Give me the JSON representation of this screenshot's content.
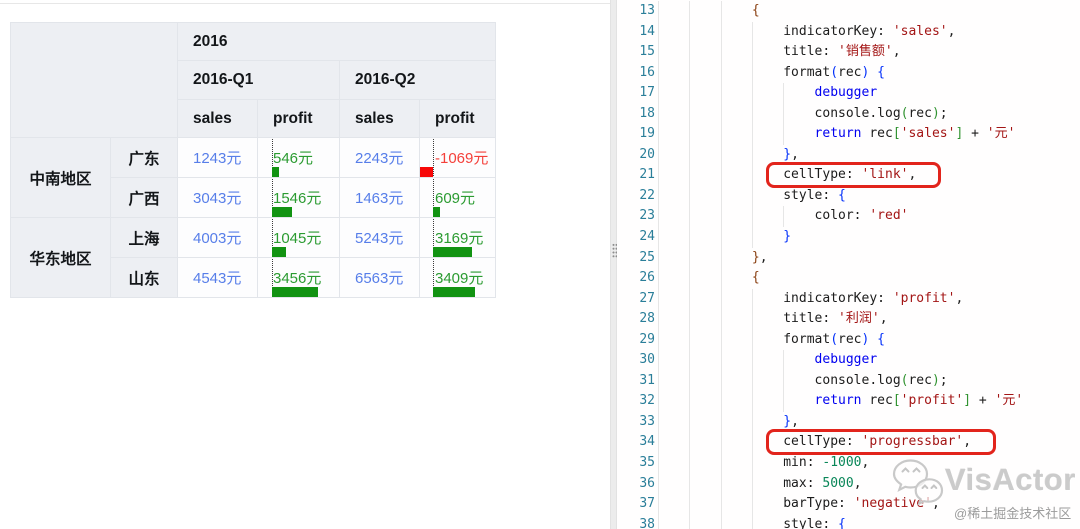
{
  "table": {
    "year_header": "2016",
    "quarters": [
      "2016-Q1",
      "2016-Q2"
    ],
    "metrics": [
      "sales",
      "profit",
      "sales",
      "profit"
    ],
    "progress": {
      "min": -1000,
      "max": 5000
    },
    "groups": [
      {
        "region": "中南地区",
        "rows": [
          {
            "city": "广东",
            "cells": [
              {
                "t": "1243元"
              },
              {
                "t": "546元",
                "v": 546
              },
              {
                "t": "2243元"
              },
              {
                "t": "-1069元",
                "v": -1069
              }
            ]
          },
          {
            "city": "广西",
            "cells": [
              {
                "t": "3043元"
              },
              {
                "t": "1546元",
                "v": 1546
              },
              {
                "t": "1463元"
              },
              {
                "t": "609元",
                "v": 609
              }
            ]
          }
        ]
      },
      {
        "region": "华东地区",
        "rows": [
          {
            "city": "上海",
            "cells": [
              {
                "t": "4003元"
              },
              {
                "t": "1045元",
                "v": 1045
              },
              {
                "t": "5243元"
              },
              {
                "t": "3169元",
                "v": 3169
              }
            ]
          },
          {
            "city": "山东",
            "cells": [
              {
                "t": "4543元"
              },
              {
                "t": "3456元",
                "v": 3456
              },
              {
                "t": "6563元"
              },
              {
                "t": "3409元",
                "v": 3409
              }
            ]
          }
        ]
      }
    ]
  },
  "editor": {
    "lines": [
      {
        "n": "13",
        "i": 3,
        "t": [
          [
            "b1",
            "{"
          ]
        ]
      },
      {
        "n": "14",
        "i": 4,
        "t": [
          [
            "d",
            "indicatorKey: "
          ],
          [
            "s",
            "'sales'"
          ],
          [
            "d",
            ","
          ]
        ]
      },
      {
        "n": "15",
        "i": 4,
        "t": [
          [
            "d",
            "title: "
          ],
          [
            "s",
            "'销售额'"
          ],
          [
            "d",
            ","
          ]
        ]
      },
      {
        "n": "16",
        "i": 4,
        "t": [
          [
            "d",
            "format"
          ],
          [
            "b2",
            "("
          ],
          [
            "d",
            "rec"
          ],
          [
            "b2",
            ")"
          ],
          [
            "d",
            " "
          ],
          [
            "b2",
            "{"
          ]
        ]
      },
      {
        "n": "17",
        "i": 5,
        "t": [
          [
            "k",
            "debugger"
          ]
        ]
      },
      {
        "n": "18",
        "i": 5,
        "t": [
          [
            "d",
            "console.log"
          ],
          [
            "b3",
            "("
          ],
          [
            "d",
            "rec"
          ],
          [
            "b3",
            ")"
          ],
          [
            "d",
            ";"
          ]
        ]
      },
      {
        "n": "19",
        "i": 5,
        "t": [
          [
            "k",
            "return"
          ],
          [
            "d",
            " rec"
          ],
          [
            "b3",
            "["
          ],
          [
            "s",
            "'sales'"
          ],
          [
            "b3",
            "]"
          ],
          [
            "d",
            " + "
          ],
          [
            "s",
            "'元'"
          ]
        ]
      },
      {
        "n": "20",
        "i": 4,
        "t": [
          [
            "b2",
            "}"
          ],
          [
            "d",
            ","
          ]
        ]
      },
      {
        "n": "21",
        "i": 4,
        "box": true,
        "t": [
          [
            "d",
            "cellType: "
          ],
          [
            "s",
            "'link'"
          ],
          [
            "d",
            ","
          ]
        ]
      },
      {
        "n": "22",
        "i": 4,
        "t": [
          [
            "d",
            "style: "
          ],
          [
            "b2",
            "{"
          ]
        ]
      },
      {
        "n": "23",
        "i": 5,
        "t": [
          [
            "d",
            "color: "
          ],
          [
            "s",
            "'red'"
          ]
        ]
      },
      {
        "n": "24",
        "i": 4,
        "t": [
          [
            "b2",
            "}"
          ]
        ]
      },
      {
        "n": "25",
        "i": 3,
        "t": [
          [
            "b1",
            "}"
          ],
          [
            "d",
            ","
          ]
        ]
      },
      {
        "n": "26",
        "i": 3,
        "t": [
          [
            "b1",
            "{"
          ]
        ]
      },
      {
        "n": "27",
        "i": 4,
        "t": [
          [
            "d",
            "indicatorKey: "
          ],
          [
            "s",
            "'profit'"
          ],
          [
            "d",
            ","
          ]
        ]
      },
      {
        "n": "28",
        "i": 4,
        "t": [
          [
            "d",
            "title: "
          ],
          [
            "s",
            "'利润'"
          ],
          [
            "d",
            ","
          ]
        ]
      },
      {
        "n": "29",
        "i": 4,
        "t": [
          [
            "d",
            "format"
          ],
          [
            "b2",
            "("
          ],
          [
            "d",
            "rec"
          ],
          [
            "b2",
            ")"
          ],
          [
            "d",
            " "
          ],
          [
            "b2",
            "{"
          ]
        ]
      },
      {
        "n": "30",
        "i": 5,
        "t": [
          [
            "k",
            "debugger"
          ]
        ]
      },
      {
        "n": "31",
        "i": 5,
        "t": [
          [
            "d",
            "console.log"
          ],
          [
            "b3",
            "("
          ],
          [
            "d",
            "rec"
          ],
          [
            "b3",
            ")"
          ],
          [
            "d",
            ";"
          ]
        ]
      },
      {
        "n": "32",
        "i": 5,
        "t": [
          [
            "k",
            "return"
          ],
          [
            "d",
            " rec"
          ],
          [
            "b3",
            "["
          ],
          [
            "s",
            "'profit'"
          ],
          [
            "b3",
            "]"
          ],
          [
            "d",
            " + "
          ],
          [
            "s",
            "'元'"
          ]
        ]
      },
      {
        "n": "33",
        "i": 4,
        "t": [
          [
            "b2",
            "}"
          ],
          [
            "d",
            ","
          ]
        ]
      },
      {
        "n": "34",
        "i": 4,
        "box": true,
        "t": [
          [
            "d",
            "cellType: "
          ],
          [
            "s",
            "'progressbar'"
          ],
          [
            "d",
            ","
          ]
        ]
      },
      {
        "n": "35",
        "i": 4,
        "t": [
          [
            "d",
            "min: "
          ],
          [
            "num",
            "-1000"
          ],
          [
            "d",
            ","
          ]
        ]
      },
      {
        "n": "36",
        "i": 4,
        "t": [
          [
            "d",
            "max: "
          ],
          [
            "num",
            "5000"
          ],
          [
            "d",
            ","
          ]
        ]
      },
      {
        "n": "37",
        "i": 4,
        "t": [
          [
            "d",
            "barType: "
          ],
          [
            "s",
            "'negative'"
          ],
          [
            "d",
            ","
          ]
        ]
      },
      {
        "n": "38",
        "i": 4,
        "t": [
          [
            "d",
            "style: "
          ],
          [
            "b2",
            "{"
          ]
        ]
      }
    ]
  },
  "watermark": {
    "brand": "VisActor",
    "credit": "@稀土掘金技术社区"
  },
  "icons": {
    "splitter_grip": "drag-handle-icon",
    "watermark_logo": "wechat-icon"
  }
}
